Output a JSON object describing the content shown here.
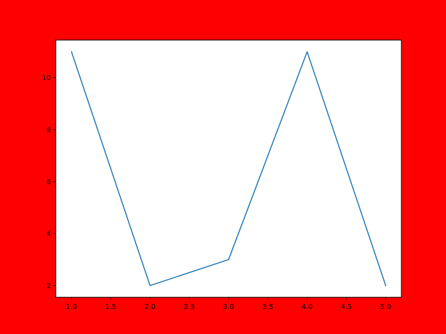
{
  "colors": {
    "figure_background": "#ff0000",
    "plot_background": "#ffffff",
    "axis": "#000000",
    "line": "#1f77b4"
  },
  "chart_data": {
    "type": "line",
    "title": "",
    "xlabel": "",
    "ylabel": "",
    "grid": false,
    "x": [
      1,
      2,
      3,
      4,
      5
    ],
    "series": [
      {
        "values": [
          11,
          2,
          3,
          11,
          2
        ]
      }
    ],
    "xlim": [
      0.8,
      5.2
    ],
    "ylim": [
      1.55,
      11.45
    ],
    "xticks": [
      1.0,
      1.5,
      2.0,
      2.5,
      3.0,
      3.5,
      4.0,
      4.5,
      5.0
    ],
    "xtick_labels": [
      "1.0",
      "1.5",
      "2.0",
      "2.5",
      "3.0",
      "3.5",
      "4.0",
      "4.5",
      "5.0"
    ],
    "yticks": [
      2,
      4,
      6,
      8,
      10
    ],
    "ytick_labels": [
      "2",
      "4",
      "6",
      "8",
      "10"
    ]
  }
}
